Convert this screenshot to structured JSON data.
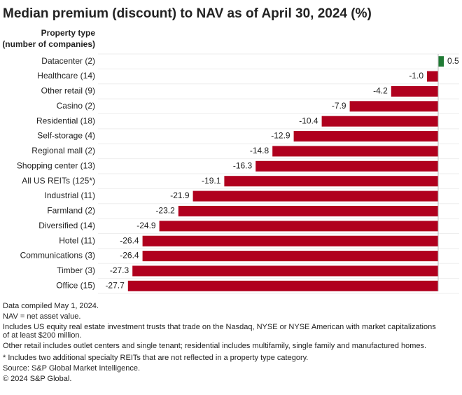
{
  "chart_data": {
    "type": "bar",
    "orientation": "horizontal",
    "title": "Median premium (discount) to NAV as of April 30, 2024 (%)",
    "category_axis_label": [
      "Property type",
      "(number of companies)"
    ],
    "categories": [
      "Datacenter (2)",
      "Healthcare (14)",
      "Other retail (9)",
      "Casino (2)",
      "Residential (18)",
      "Self-storage (4)",
      "Regional mall (2)",
      "Shopping center (13)",
      "All US REITs (125*)",
      "Industrial (11)",
      "Farmland (2)",
      "Diversified (14)",
      "Hotel (11)",
      "Communications (3)",
      "Timber (3)",
      "Office (15)"
    ],
    "values": [
      0.5,
      -1.0,
      -4.2,
      -7.9,
      -10.4,
      -12.9,
      -14.8,
      -16.3,
      -19.1,
      -21.9,
      -23.2,
      -24.9,
      -26.4,
      -26.4,
      -27.3,
      -27.7
    ],
    "value_labels": [
      "0.5",
      "-1.0",
      "-4.2",
      "-7.9",
      "-10.4",
      "-12.9",
      "-14.8",
      "-16.3",
      "-19.1",
      "-21.9",
      "-23.2",
      "-24.9",
      "-26.4",
      "-26.4",
      "-27.3",
      "-27.7"
    ],
    "positive_color": "#1f7a34",
    "negative_color": "#b0001e",
    "xlim": [
      -28,
      1
    ],
    "notes": [
      "Data compiled May 1, 2024.",
      "NAV = net asset value.",
      "Includes US equity real estate investment trusts that trade on the Nasdaq, NYSE or NYSE American with market capitalizations",
      "of at least $200 million.",
      "Other retail includes outlet centers and single tenant; residential includes multifamily, single family and manufactured homes.",
      "* Includes two additional specialty REITs that are not reflected in a property type category.",
      "Source: S&P Global Market Intelligence.",
      "© 2024 S&P Global."
    ]
  }
}
